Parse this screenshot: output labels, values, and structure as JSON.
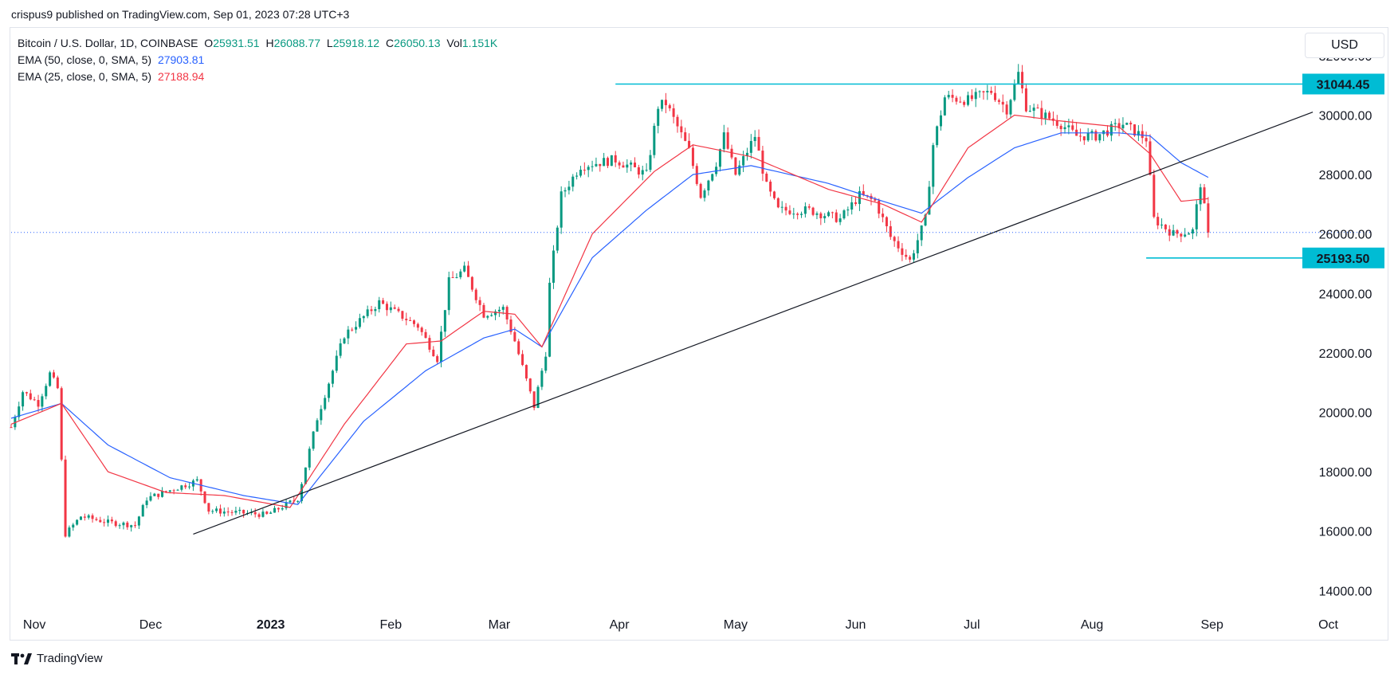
{
  "publisher": "crispus9 published on TradingView.com, Sep 01, 2023 07:28 UTC+3",
  "currency_button": "USD",
  "legend": {
    "symbol": "Bitcoin / U.S. Dollar, 1D, COINBASE",
    "o_label": "O",
    "o_value": "25931.51",
    "h_label": "H",
    "h_value": "26088.77",
    "l_label": "L",
    "l_value": "25918.12",
    "c_label": "C",
    "c_value": "26050.13",
    "vol_label": "Vol",
    "vol_value": "1.151K",
    "ema50_label": "EMA (50, close, 0, SMA, 5)",
    "ema50_value": "27903.81",
    "ema25_label": "EMA (25, close, 0, SMA, 5)",
    "ema25_value": "27188.94"
  },
  "footer": {
    "brand": "TradingView"
  },
  "colors": {
    "up": "#089981",
    "down": "#f23645",
    "ema50": "#2962ff",
    "ema25": "#f23645",
    "level": "#00bcd4",
    "trend": "#131722"
  },
  "chart_data": {
    "type": "candlestick",
    "ylim": [
      13500,
      32800
    ],
    "y_ticks": [
      14000,
      16000,
      18000,
      20000,
      22000,
      24000,
      26000,
      28000,
      30000,
      32000
    ],
    "y_tick_labels": [
      "14000.00",
      "16000.00",
      "18000.00",
      "20000.00",
      "22000.00",
      "24000.00",
      "26000.00",
      "28000.00",
      "30000.00",
      "32000.00"
    ],
    "x_range": [
      "2022-10-26",
      "2023-10-12"
    ],
    "x_ticks": [
      {
        "date": "2022-11-01",
        "label": "Nov"
      },
      {
        "date": "2022-12-01",
        "label": "Dec"
      },
      {
        "date": "2023-01-01",
        "label": "2023"
      },
      {
        "date": "2023-02-01",
        "label": "Feb"
      },
      {
        "date": "2023-03-01",
        "label": "Mar"
      },
      {
        "date": "2023-04-01",
        "label": "Apr"
      },
      {
        "date": "2023-05-01",
        "label": "May"
      },
      {
        "date": "2023-06-01",
        "label": "Jun"
      },
      {
        "date": "2023-07-01",
        "label": "Jul"
      },
      {
        "date": "2023-08-01",
        "label": "Aug"
      },
      {
        "date": "2023-09-01",
        "label": "Sep"
      },
      {
        "date": "2023-10-01",
        "label": "Oct"
      }
    ],
    "price_anchors": [
      [
        "2022-10-26",
        19500
      ],
      [
        "2022-10-29",
        20700
      ],
      [
        "2022-11-02",
        20300
      ],
      [
        "2022-11-05",
        21300
      ],
      [
        "2022-11-07",
        20800
      ],
      [
        "2022-11-09",
        15900
      ],
      [
        "2022-11-13",
        16500
      ],
      [
        "2022-11-20",
        16300
      ],
      [
        "2022-11-27",
        16200
      ],
      [
        "2022-11-30",
        17100
      ],
      [
        "2022-12-13",
        17700
      ],
      [
        "2022-12-16",
        16700
      ],
      [
        "2022-12-31",
        16550
      ],
      [
        "2023-01-08",
        17100
      ],
      [
        "2023-01-13",
        19800
      ],
      [
        "2023-01-20",
        22600
      ],
      [
        "2023-01-29",
        23700
      ],
      [
        "2023-02-08",
        22900
      ],
      [
        "2023-02-13",
        21800
      ],
      [
        "2023-02-16",
        24400
      ],
      [
        "2023-02-20",
        24800
      ],
      [
        "2023-02-25",
        23300
      ],
      [
        "2023-03-02",
        23500
      ],
      [
        "2023-03-05",
        22400
      ],
      [
        "2023-03-10",
        20200
      ],
      [
        "2023-03-13",
        22000
      ],
      [
        "2023-03-14",
        24300
      ],
      [
        "2023-03-17",
        27300
      ],
      [
        "2023-03-22",
        28300
      ],
      [
        "2023-03-31",
        28500
      ],
      [
        "2023-04-08",
        28000
      ],
      [
        "2023-04-11",
        30300
      ],
      [
        "2023-04-13",
        30400
      ],
      [
        "2023-04-19",
        28800
      ],
      [
        "2023-04-22",
        27300
      ],
      [
        "2023-04-26",
        28400
      ],
      [
        "2023-04-28",
        29300
      ],
      [
        "2023-05-01",
        28000
      ],
      [
        "2023-05-06",
        29300
      ],
      [
        "2023-05-09",
        27600
      ],
      [
        "2023-05-12",
        26800
      ],
      [
        "2023-05-20",
        26800
      ],
      [
        "2023-05-28",
        26500
      ],
      [
        "2023-06-02",
        27300
      ],
      [
        "2023-06-06",
        27100
      ],
      [
        "2023-06-10",
        25900
      ],
      [
        "2023-06-15",
        25100
      ],
      [
        "2023-06-19",
        26500
      ],
      [
        "2023-06-21",
        29000
      ],
      [
        "2023-06-24",
        30600
      ],
      [
        "2023-06-30",
        30500
      ],
      [
        "2023-07-06",
        30800
      ],
      [
        "2023-07-10",
        30200
      ],
      [
        "2023-07-13",
        31400
      ],
      [
        "2023-07-15",
        30300
      ],
      [
        "2023-07-24",
        29700
      ],
      [
        "2023-07-28",
        29300
      ],
      [
        "2023-08-02",
        29300
      ],
      [
        "2023-08-09",
        29700
      ],
      [
        "2023-08-15",
        29200
      ],
      [
        "2023-08-17",
        26500
      ],
      [
        "2023-08-22",
        26000
      ],
      [
        "2023-08-27",
        26100
      ],
      [
        "2023-08-29",
        27700
      ],
      [
        "2023-08-31",
        26050
      ]
    ],
    "ema50_anchors": [
      [
        "2022-10-26",
        19800
      ],
      [
        "2022-11-08",
        20300
      ],
      [
        "2022-11-20",
        18900
      ],
      [
        "2022-12-06",
        17800
      ],
      [
        "2022-12-25",
        17200
      ],
      [
        "2023-01-08",
        16900
      ],
      [
        "2023-01-25",
        19700
      ],
      [
        "2023-02-10",
        21400
      ],
      [
        "2023-02-25",
        22500
      ],
      [
        "2023-03-05",
        22800
      ],
      [
        "2023-03-12",
        22200
      ],
      [
        "2023-03-25",
        25200
      ],
      [
        "2023-04-08",
        26800
      ],
      [
        "2023-04-20",
        28000
      ],
      [
        "2023-05-05",
        28300
      ],
      [
        "2023-05-25",
        27700
      ],
      [
        "2023-06-08",
        27100
      ],
      [
        "2023-06-18",
        26700
      ],
      [
        "2023-06-30",
        27900
      ],
      [
        "2023-07-12",
        28900
      ],
      [
        "2023-07-24",
        29400
      ],
      [
        "2023-08-08",
        29400
      ],
      [
        "2023-08-16",
        29300
      ],
      [
        "2023-08-24",
        28400
      ],
      [
        "2023-08-31",
        27904
      ]
    ],
    "ema25_anchors": [
      [
        "2022-10-26",
        19600
      ],
      [
        "2022-11-08",
        20300
      ],
      [
        "2022-11-20",
        18000
      ],
      [
        "2022-12-05",
        17300
      ],
      [
        "2022-12-20",
        17200
      ],
      [
        "2023-01-06",
        16800
      ],
      [
        "2023-01-20",
        19600
      ],
      [
        "2023-02-05",
        22300
      ],
      [
        "2023-02-14",
        22400
      ],
      [
        "2023-02-25",
        23400
      ],
      [
        "2023-03-05",
        23300
      ],
      [
        "2023-03-12",
        22200
      ],
      [
        "2023-03-25",
        26000
      ],
      [
        "2023-04-10",
        28100
      ],
      [
        "2023-04-20",
        29000
      ],
      [
        "2023-05-05",
        28600
      ],
      [
        "2023-05-25",
        27500
      ],
      [
        "2023-06-08",
        27000
      ],
      [
        "2023-06-18",
        26400
      ],
      [
        "2023-06-30",
        28900
      ],
      [
        "2023-07-12",
        30000
      ],
      [
        "2023-07-24",
        29800
      ],
      [
        "2023-08-08",
        29600
      ],
      [
        "2023-08-16",
        28700
      ],
      [
        "2023-08-24",
        27100
      ],
      [
        "2023-08-31",
        27189
      ]
    ],
    "resistance": {
      "price": 31044.45,
      "label": "31044.45",
      "from": "2023-03-31"
    },
    "support": {
      "price": 25193.5,
      "label": "25193.50",
      "from": "2023-08-15"
    },
    "last_price": {
      "price": 26050.13
    },
    "trendline": {
      "start": [
        "2022-12-12",
        15900
      ],
      "end": [
        "2023-09-27",
        30100
      ]
    }
  }
}
